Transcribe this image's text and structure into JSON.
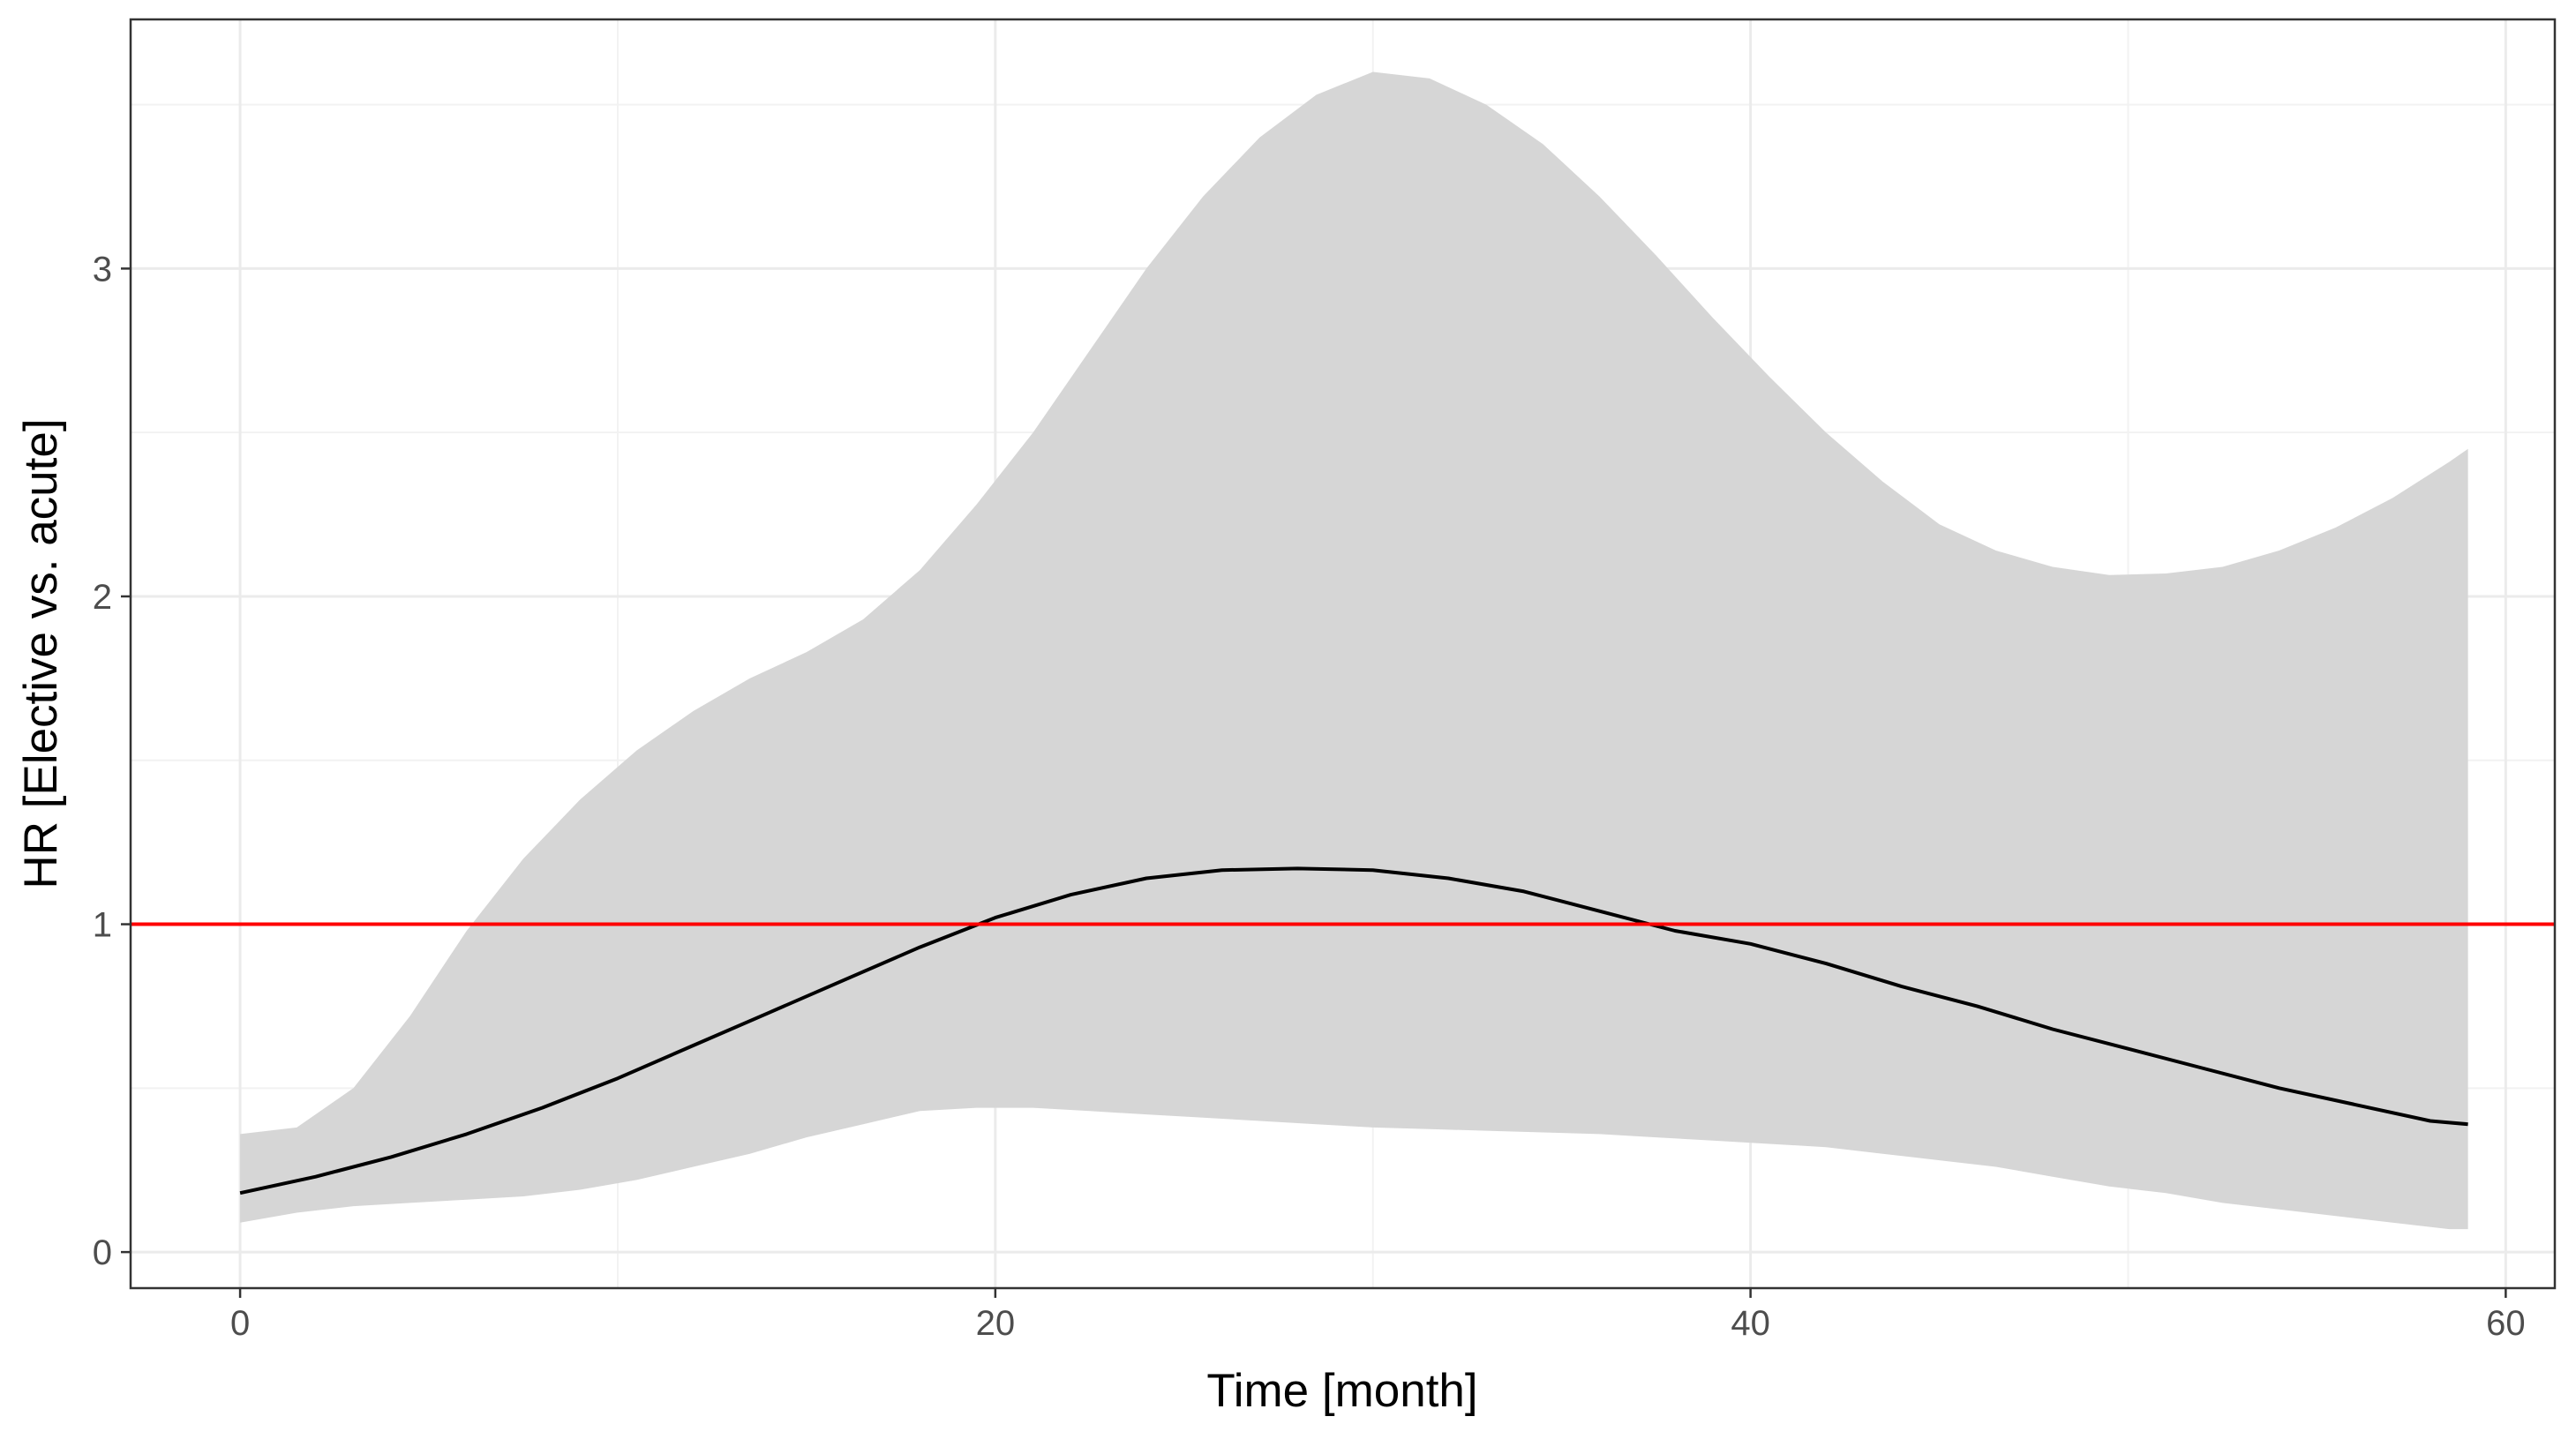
{
  "chart_data": {
    "type": "line",
    "title": "",
    "xlabel": "Time [month]",
    "ylabel": "HR [Elective vs. acute]",
    "xlim": [
      -2.9,
      61.3
    ],
    "ylim": [
      -0.11,
      3.76
    ],
    "x_ticks": [
      0,
      20,
      40,
      60
    ],
    "x_tick_labels": [
      "0",
      "20",
      "40",
      "60"
    ],
    "y_ticks": [
      0,
      1,
      2,
      3
    ],
    "y_tick_labels": [
      "0",
      "1",
      "2",
      "3"
    ],
    "grid": true,
    "legend": "none",
    "series": [
      {
        "kind": "line",
        "color": "#000000",
        "x": [
          0,
          2,
          4,
          6,
          8,
          10,
          12,
          14,
          16,
          18,
          20,
          22,
          24,
          26,
          28,
          30,
          32,
          34,
          36,
          38,
          40,
          42,
          44,
          46,
          48,
          50,
          52,
          54,
          56,
          58,
          59
        ],
        "y": [
          0.18,
          0.23,
          0.29,
          0.36,
          0.44,
          0.53,
          0.63,
          0.73,
          0.83,
          0.93,
          1.02,
          1.09,
          1.14,
          1.165,
          1.17,
          1.165,
          1.14,
          1.1,
          1.04,
          0.98,
          0.94,
          0.88,
          0.81,
          0.75,
          0.68,
          0.62,
          0.56,
          0.5,
          0.45,
          0.4,
          0.39
        ]
      },
      {
        "kind": "ribbon",
        "color": "#d6d6d6",
        "x": [
          0,
          1.5,
          3,
          4.5,
          6,
          7.5,
          9,
          10.5,
          12,
          13.5,
          15,
          16.5,
          18,
          19.5,
          21,
          22.5,
          24,
          25.5,
          27,
          28.5,
          30,
          31.5,
          33,
          34.5,
          36,
          37.5,
          39,
          40.5,
          42,
          43.5,
          45,
          46.5,
          48,
          49.5,
          51,
          52.5,
          54,
          55.5,
          57,
          58.5,
          59
        ],
        "lower": [
          0.09,
          0.12,
          0.14,
          0.15,
          0.16,
          0.17,
          0.19,
          0.22,
          0.26,
          0.3,
          0.35,
          0.39,
          0.43,
          0.44,
          0.44,
          0.43,
          0.42,
          0.41,
          0.4,
          0.39,
          0.38,
          0.375,
          0.37,
          0.365,
          0.36,
          0.35,
          0.34,
          0.33,
          0.32,
          0.3,
          0.28,
          0.26,
          0.23,
          0.2,
          0.18,
          0.15,
          0.13,
          0.11,
          0.09,
          0.07,
          0.07
        ],
        "upper": [
          0.36,
          0.38,
          0.5,
          0.72,
          0.98,
          1.2,
          1.38,
          1.53,
          1.65,
          1.75,
          1.83,
          1.93,
          2.08,
          2.28,
          2.5,
          2.75,
          3.0,
          3.22,
          3.4,
          3.53,
          3.6,
          3.58,
          3.5,
          3.38,
          3.22,
          3.04,
          2.85,
          2.67,
          2.5,
          2.35,
          2.22,
          2.14,
          2.09,
          2.065,
          2.07,
          2.09,
          2.14,
          2.21,
          2.3,
          2.41,
          2.45
        ]
      }
    ],
    "reference_lines": [
      {
        "axis": "y",
        "value": 1,
        "color": "#ff0000"
      }
    ]
  }
}
